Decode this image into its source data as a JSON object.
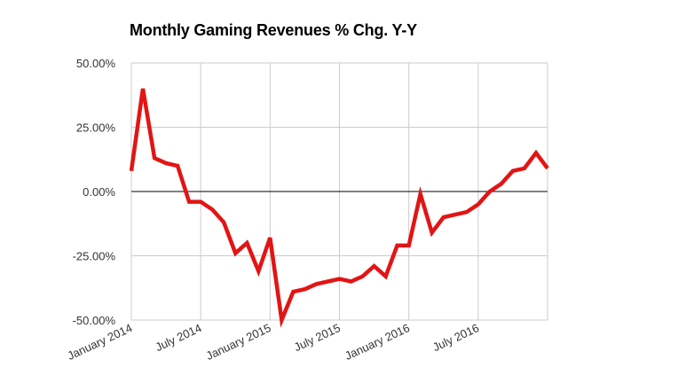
{
  "chart_data": {
    "type": "line",
    "title": "Monthly Gaming Revenues % Chg. Y-Y",
    "xlabel": "",
    "ylabel": "",
    "ylim": [
      -50,
      50
    ],
    "y_ticks": [
      "50.00%",
      "25.00%",
      "0.00%",
      "-25.00%",
      "-50.00%"
    ],
    "y_tick_values": [
      50,
      25,
      0,
      -25,
      -50
    ],
    "x_ticks": [
      "January 2014",
      "July 2014",
      "January 2015",
      "July 2015",
      "January 2016",
      "July 2016"
    ],
    "x_tick_values": [
      "2014-01",
      "2014-07",
      "2015-01",
      "2015-07",
      "2016-01",
      "2016-07"
    ],
    "grid": true,
    "colors": {
      "line": "#e31414",
      "grid": "#cccccc",
      "zero_line": "#000000"
    },
    "series": [
      {
        "x": [
          "2014-01",
          "2014-02",
          "2014-03",
          "2014-04",
          "2014-05",
          "2014-06",
          "2014-07",
          "2014-08",
          "2014-09",
          "2014-10",
          "2014-11",
          "2014-12",
          "2015-01",
          "2015-02",
          "2015-03",
          "2015-04",
          "2015-05",
          "2015-06",
          "2015-07",
          "2015-08",
          "2015-09",
          "2015-10",
          "2015-11",
          "2015-12",
          "2016-01",
          "2016-02",
          "2016-03",
          "2016-04",
          "2016-05",
          "2016-06",
          "2016-07",
          "2016-08",
          "2016-09",
          "2016-10",
          "2016-11",
          "2016-12",
          "2017-01"
        ],
        "values": [
          8,
          40,
          13,
          11,
          10,
          -4,
          -4,
          -7,
          -12,
          -24,
          -20,
          -31,
          -18,
          -50,
          -39,
          -38,
          -36,
          -35,
          -34,
          -35,
          -33,
          -29,
          -33,
          -21,
          -21,
          -1,
          -16,
          -10,
          -9,
          -8,
          -5,
          0,
          3,
          8,
          9,
          15,
          9
        ]
      }
    ]
  }
}
